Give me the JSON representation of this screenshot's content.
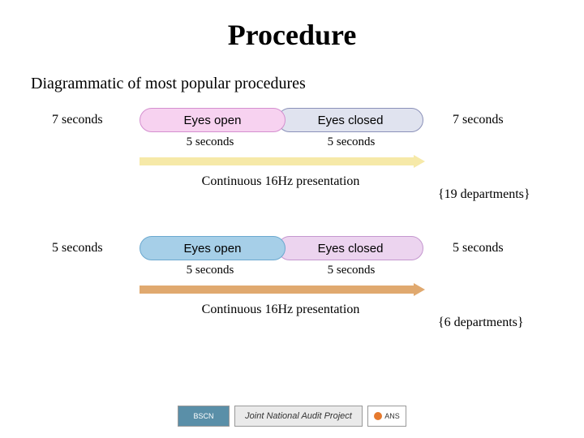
{
  "title": "Procedure",
  "subtitle": "Diagrammatic of most popular procedures",
  "blocks": [
    {
      "side_label": "7 seconds",
      "left_pill": {
        "text": "Eyes open",
        "bg": "#f7d2f0",
        "border": "#d48fcf"
      },
      "right_pill": {
        "text": "Eyes closed",
        "bg": "#e0e3ef",
        "border": "#8a90b8"
      },
      "left_sub": "5 seconds",
      "right_sub": "5 seconds",
      "arrow_color": "#f6e9a8",
      "continuous": "Continuous 16Hz presentation",
      "departments": "{19 departments}"
    },
    {
      "side_label": "5 seconds",
      "left_pill": {
        "text": "Eyes open",
        "bg": "#a6cfe8",
        "border": "#6ba8cf"
      },
      "right_pill": {
        "text": "Eyes closed",
        "bg": "#ecd4ef",
        "border": "#c497cf"
      },
      "left_sub": "5 seconds",
      "right_sub": "5 seconds",
      "arrow_color": "#e0a96f",
      "continuous": "Continuous 16Hz presentation",
      "departments": "{6 departments}"
    }
  ],
  "footer": {
    "bscn": "BSCN",
    "jnap": "Joint National Audit Project",
    "ans": "ANS"
  }
}
